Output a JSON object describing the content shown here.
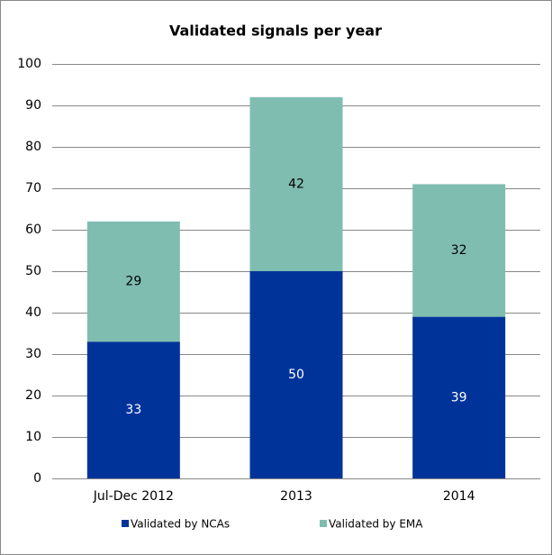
{
  "chart_data": {
    "type": "stacked_bar",
    "title": "Validated signals per year",
    "categories": [
      "Jul-Dec 2012",
      "2013",
      "2014"
    ],
    "series": [
      {
        "name": "Validated by NCAs",
        "color": "#003399",
        "values": [
          33,
          50,
          39
        ]
      },
      {
        "name": "Validated by EMA",
        "color": "#80bdb1",
        "values": [
          29,
          42,
          32
        ]
      }
    ],
    "ylim": [
      0,
      100
    ],
    "yticks": [
      0,
      10,
      20,
      30,
      40,
      50,
      60,
      70,
      80,
      90,
      100
    ],
    "grid": true,
    "legend": "bottom"
  }
}
